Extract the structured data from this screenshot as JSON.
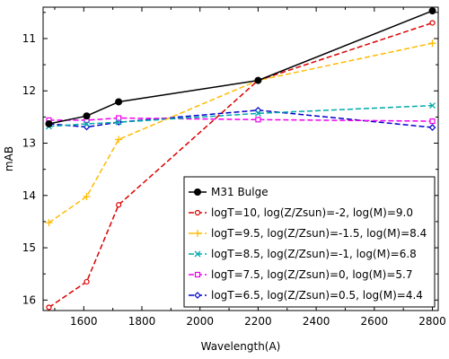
{
  "chart_data": {
    "type": "line",
    "title": "",
    "xlabel": "Wavelength(A)",
    "ylabel": "mAB",
    "xlim": [
      1460,
      2820
    ],
    "ylim": [
      10.4,
      16.2
    ],
    "y_inverted": true,
    "grid": false,
    "legend_position": "bottom-right",
    "x_ticks": [
      1600,
      1800,
      2000,
      2200,
      2400,
      2600,
      2800
    ],
    "y_ticks": [
      11,
      12,
      13,
      14,
      15,
      16
    ],
    "x": [
      1480,
      1610,
      1720,
      2200,
      2800
    ],
    "series": [
      {
        "name": "M31 Bulge",
        "values": [
          12.63,
          12.48,
          12.21,
          11.8,
          10.47
        ],
        "color": "#000000",
        "dash": "solid",
        "marker": "filled-circle"
      },
      {
        "name": "logT=10, log(Z/Zsun)=-2, log(M)=9.0",
        "values": [
          16.14,
          15.65,
          14.18,
          11.8,
          10.7
        ],
        "color": "#dd0000",
        "dash": "dashed",
        "marker": "open-circle"
      },
      {
        "name": "logT=9.5, log(Z/Zsun)=-1.5, log(M)=8.4",
        "values": [
          14.52,
          14.02,
          12.93,
          11.8,
          11.09
        ],
        "color": "#ffbb00",
        "dash": "dashed",
        "marker": "plus"
      },
      {
        "name": "logT=8.5, log(Z/Zsun)=-1, log(M)=6.8",
        "values": [
          12.68,
          12.63,
          12.6,
          12.43,
          12.28
        ],
        "color": "#00aaaa",
        "dash": "dashed",
        "marker": "x"
      },
      {
        "name": "logT=7.5, log(Z/Zsun)=0, log(M)=5.7",
        "values": [
          12.56,
          12.56,
          12.52,
          12.55,
          12.58
        ],
        "color": "#ee00ee",
        "dash": "dashed",
        "marker": "open-square"
      },
      {
        "name": "logT=6.5, log(Z/Zsun)=0.5, log(M)=4.4",
        "values": [
          12.63,
          12.69,
          12.6,
          12.37,
          12.7
        ],
        "color": "#0000cc",
        "dash": "dashed",
        "marker": "diamond"
      }
    ]
  }
}
